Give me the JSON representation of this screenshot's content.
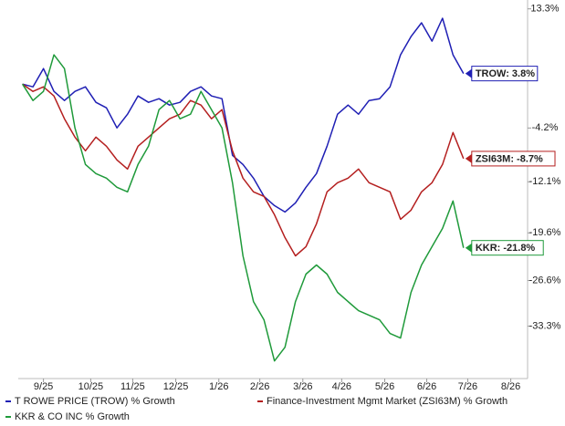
{
  "chart_data": {
    "type": "line",
    "x": [
      0,
      1,
      2,
      3,
      4,
      5,
      6,
      7,
      8,
      9,
      10,
      11,
      12,
      13,
      14,
      15,
      16,
      17,
      18,
      19,
      20,
      21,
      22,
      23,
      24,
      25,
      26,
      27,
      28,
      29,
      30,
      31,
      32,
      33,
      34,
      35,
      36,
      37,
      38,
      39,
      40,
      41,
      42
    ],
    "xlim": [
      -0.4,
      48.1
    ],
    "xticks": [
      {
        "value": 2,
        "label": "9/25"
      },
      {
        "value": 6.5,
        "label": "10/25"
      },
      {
        "value": 10.5,
        "label": "11/25"
      },
      {
        "value": 14.6,
        "label": "12/25"
      },
      {
        "value": 18.7,
        "label": "1/26"
      },
      {
        "value": 22.6,
        "label": "2/26"
      },
      {
        "value": 26.7,
        "label": "3/26"
      },
      {
        "value": 30.4,
        "label": "4/26"
      },
      {
        "value": 34.5,
        "label": "5/26"
      },
      {
        "value": 38.5,
        "label": "6/26"
      },
      {
        "value": 42.4,
        "label": "7/26"
      },
      {
        "value": 46.5,
        "label": "8/26"
      }
    ],
    "ylim": [
      -41,
      14.6
    ],
    "yticks": [
      {
        "value": 13.3,
        "label": "13.3%"
      },
      {
        "value": -4.2,
        "label": "-4.2%"
      },
      {
        "value": -12.1,
        "label": "-12.1%"
      },
      {
        "value": -19.6,
        "label": "-19.6%"
      },
      {
        "value": -26.6,
        "label": "-26.6%"
      },
      {
        "value": -33.3,
        "label": "-33.3%"
      }
    ],
    "grid": false,
    "series": [
      {
        "name": "T ROWE PRICE (TROW) % Growth",
        "color": "#1f1fb4",
        "end_label": "TROW: 3.8%",
        "values": [
          2.25,
          1.85,
          4.53,
          1.18,
          -0.16,
          1.18,
          1.85,
          -0.43,
          -1.24,
          -4.19,
          -2.18,
          0.51,
          -0.43,
          0.11,
          -0.83,
          -0.43,
          1.18,
          1.85,
          0.51,
          0.11,
          -8.21,
          -9.56,
          -11.57,
          -14.25,
          -15.6,
          -16.53,
          -15.19,
          -12.91,
          -10.9,
          -6.87,
          -2.18,
          -0.83,
          -2.18,
          -0.16,
          0.11,
          1.85,
          6.55,
          9.23,
          11.25,
          8.56,
          11.92,
          6.55,
          3.8
        ]
      },
      {
        "name": "Finance-Investment Mgmt Market (ZSI63M) % Growth",
        "color": "#b41f1f",
        "end_label": "ZSI63M: -8.7%",
        "values": [
          2.25,
          1.18,
          1.85,
          0.51,
          -2.85,
          -5.53,
          -7.54,
          -5.53,
          -6.87,
          -8.89,
          -10.23,
          -6.87,
          -5.53,
          -4.19,
          -2.85,
          -2.18,
          -0.16,
          -0.83,
          -2.85,
          -1.51,
          -7.54,
          -11.57,
          -13.58,
          -14.25,
          -16.94,
          -20.29,
          -22.98,
          -21.63,
          -18.28,
          -13.58,
          -12.24,
          -11.57,
          -10.23,
          -12.24,
          -12.91,
          -13.58,
          -17.61,
          -16.27,
          -13.58,
          -12.24,
          -9.56,
          -4.86,
          -8.7
        ]
      },
      {
        "name": "KKR & CO INC % Growth",
        "color": "#1f9a3a",
        "end_label": "KKR: -21.8%",
        "values": [
          2.25,
          -0.16,
          1.18,
          6.55,
          4.53,
          -4.19,
          -9.56,
          -10.9,
          -11.57,
          -12.91,
          -13.58,
          -9.56,
          -6.87,
          -1.51,
          -0.16,
          -2.85,
          -2.18,
          1.18,
          -1.51,
          -4.19,
          -12.24,
          -22.98,
          -29.69,
          -32.37,
          -38.41,
          -36.4,
          -29.69,
          -25.66,
          -24.32,
          -25.66,
          -28.34,
          -29.69,
          -31.03,
          -31.7,
          -32.37,
          -34.38,
          -35.05,
          -28.34,
          -24.32,
          -21.63,
          -18.95,
          -14.92,
          -21.8
        ]
      }
    ]
  }
}
